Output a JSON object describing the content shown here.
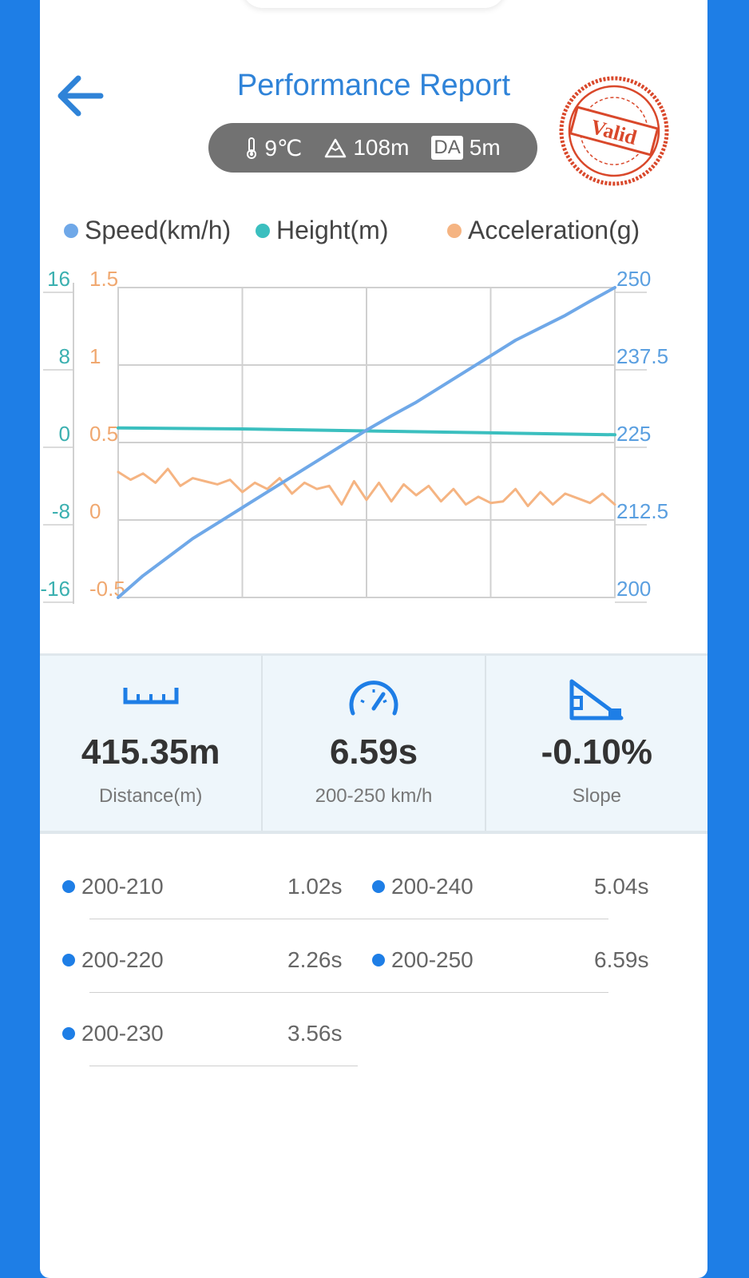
{
  "header": {
    "title": "Performance Report",
    "back_icon": "arrow-left-icon"
  },
  "env": {
    "temperature": "9℃",
    "altitude": "108m",
    "da_label": "DA",
    "da_value": "5m"
  },
  "stamp": {
    "text": "Valid",
    "color": "#d9482b"
  },
  "legend": [
    {
      "label": "Speed(km/h)",
      "color": "#6fa8e8"
    },
    {
      "label": "Height(m)",
      "color": "#3bbfbf"
    },
    {
      "label": "Acceleration(g)",
      "color": "#f5b482"
    }
  ],
  "chart_data": {
    "type": "line",
    "x_range": [
      0,
      1
    ],
    "grid": true,
    "axes": {
      "height_ticks": [
        "16",
        "8",
        "0",
        "-8",
        "-16"
      ],
      "height_range": [
        -16,
        16
      ],
      "accel_ticks": [
        "1.5",
        "1",
        "0.5",
        "0",
        "-0.5"
      ],
      "accel_range": [
        -0.5,
        1.5
      ],
      "speed_ticks": [
        "250",
        "237.5",
        "225",
        "212.5",
        "200"
      ],
      "speed_range": [
        200,
        250
      ]
    },
    "series": [
      {
        "name": "Speed(km/h)",
        "axis": "speed",
        "color": "#6fa8e8",
        "x": [
          0,
          0.05,
          0.1,
          0.15,
          0.2,
          0.25,
          0.3,
          0.35,
          0.4,
          0.45,
          0.5,
          0.55,
          0.6,
          0.65,
          0.7,
          0.75,
          0.8,
          0.85,
          0.9,
          0.95,
          1.0
        ],
        "y": [
          200,
          203.5,
          206.5,
          209.5,
          212,
          214.5,
          217,
          219.5,
          222,
          224.5,
          227,
          229.3,
          231.5,
          234,
          236.5,
          239,
          241.5,
          243.5,
          245.5,
          247.8,
          250
        ]
      },
      {
        "name": "Height(m)",
        "axis": "height",
        "color": "#3bbfbf",
        "x": [
          0,
          0.25,
          0.5,
          0.75,
          1.0
        ],
        "y": [
          1.5,
          1.4,
          1.2,
          1.0,
          0.8
        ]
      },
      {
        "name": "Acceleration(g)",
        "axis": "accel",
        "color": "#f5b482",
        "x": [
          0,
          0.025,
          0.05,
          0.075,
          0.1,
          0.125,
          0.15,
          0.175,
          0.2,
          0.225,
          0.25,
          0.275,
          0.3,
          0.325,
          0.35,
          0.375,
          0.4,
          0.425,
          0.45,
          0.475,
          0.5,
          0.525,
          0.55,
          0.575,
          0.6,
          0.625,
          0.65,
          0.675,
          0.7,
          0.725,
          0.75,
          0.775,
          0.8,
          0.825,
          0.85,
          0.875,
          0.9,
          0.925,
          0.95,
          0.975,
          1.0
        ],
        "y": [
          0.31,
          0.26,
          0.3,
          0.24,
          0.33,
          0.22,
          0.27,
          0.25,
          0.23,
          0.26,
          0.18,
          0.24,
          0.2,
          0.27,
          0.17,
          0.24,
          0.2,
          0.22,
          0.1,
          0.25,
          0.13,
          0.24,
          0.12,
          0.23,
          0.16,
          0.22,
          0.12,
          0.2,
          0.1,
          0.15,
          0.11,
          0.12,
          0.2,
          0.09,
          0.18,
          0.1,
          0.17,
          0.14,
          0.11,
          0.17,
          0.1
        ]
      }
    ]
  },
  "stats": [
    {
      "icon": "ruler-icon",
      "value": "415.35m",
      "label": "Distance(m)"
    },
    {
      "icon": "speedometer-icon",
      "value": "6.59s",
      "label": "200-250 km/h"
    },
    {
      "icon": "slope-icon",
      "value": "-0.10%",
      "label": "Slope"
    }
  ],
  "splits": [
    {
      "range": "200-210",
      "time": "1.02s"
    },
    {
      "range": "200-220",
      "time": "2.26s"
    },
    {
      "range": "200-230",
      "time": "3.56s"
    },
    {
      "range": "200-240",
      "time": "5.04s"
    },
    {
      "range": "200-250",
      "time": "6.59s"
    }
  ]
}
